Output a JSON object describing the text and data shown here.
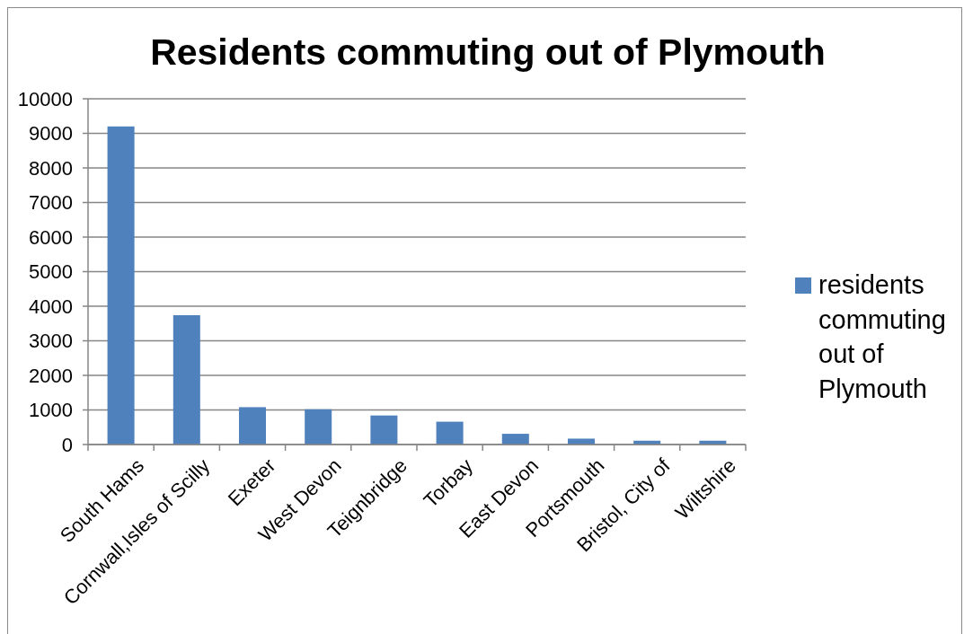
{
  "chart_data": {
    "type": "bar",
    "title": "Residents commuting out of Plymouth",
    "categories": [
      "South Hams",
      "Cornwall,Isles of Scilly",
      "Exeter",
      "West Devon",
      "Teignbridge",
      "Torbay",
      "East Devon",
      "Portsmouth",
      "Bristol, City of",
      "Wiltshire"
    ],
    "series": [
      {
        "name": "residents commuting out of Plymouth",
        "color": "#4f81bd",
        "values": [
          9200,
          3740,
          1080,
          1020,
          840,
          660,
          310,
          170,
          110,
          110
        ]
      }
    ],
    "ylim": [
      0,
      10000
    ],
    "yticks": [
      0,
      1000,
      2000,
      3000,
      4000,
      5000,
      6000,
      7000,
      8000,
      9000,
      10000
    ],
    "grid": "y",
    "legend": "right"
  }
}
